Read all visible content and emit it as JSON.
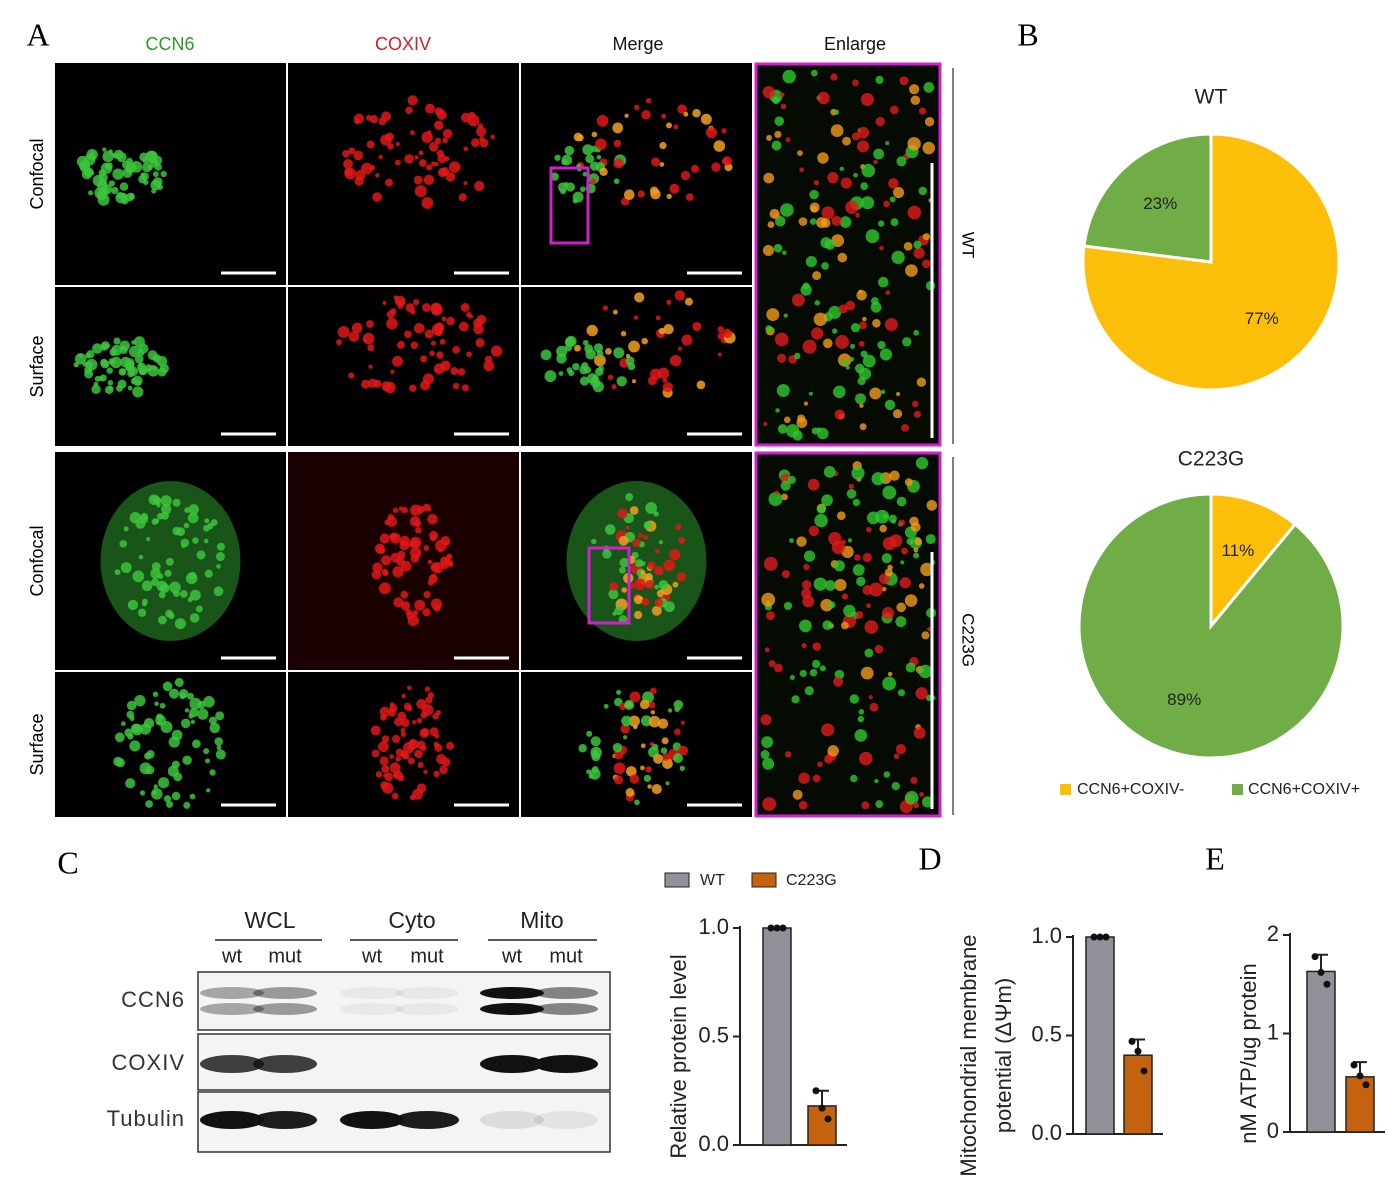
{
  "panel_labels": [
    "A",
    "B",
    "C",
    "D",
    "E"
  ],
  "images": {
    "columns": [
      "CCN6",
      "COXIV",
      "Merge",
      "Enlarge"
    ],
    "rows": [
      "Confocal",
      "Surface",
      "Confocal",
      "Surface"
    ],
    "groups": [
      "WT",
      "C223G"
    ]
  },
  "blot": {
    "groups": [
      "WCL",
      "Cyto",
      "Mito"
    ],
    "lanes": [
      "wt",
      "mut",
      "wt",
      "mut",
      "wt",
      "mut"
    ],
    "rows": [
      "CCN6",
      "COXIV",
      "Tubulin"
    ]
  },
  "chart_data": [
    {
      "type": "pie",
      "title": "WT",
      "categories": [
        "CCN6+COXIV-",
        "CCN6+COXIV+"
      ],
      "values": [
        77,
        23
      ],
      "value_labels": [
        "77%",
        "23%"
      ],
      "colors": [
        "#fbbf0a",
        "#70ad47"
      ],
      "legend": "bottom"
    },
    {
      "type": "pie",
      "title": "C223G",
      "categories": [
        "CCN6+COXIV-",
        "CCN6+COXIV+"
      ],
      "values": [
        11,
        89
      ],
      "value_labels": [
        "11%",
        "89%"
      ],
      "colors": [
        "#fbbf0a",
        "#70ad47"
      ]
    },
    {
      "type": "bar",
      "ylabel": [
        "Relative protein level"
      ],
      "ylim": [
        0,
        1.0
      ],
      "yticks": [
        {
          "value": 0,
          "label": "0.0"
        },
        {
          "value": 0.5,
          "label": "0.5"
        },
        {
          "value": 1,
          "label": "1.0"
        }
      ],
      "legend": "top",
      "series": [
        {
          "name": "WT",
          "color": "#919199",
          "values": [
            1.0
          ],
          "errors": [
            0
          ],
          "points": [
            1.0,
            1.0,
            1.0
          ]
        },
        {
          "name": "C223G",
          "color": "#c5620f",
          "values": [
            0.18
          ],
          "errors": [
            0.07
          ],
          "points": [
            0.25,
            0.17,
            0.12
          ]
        }
      ]
    },
    {
      "type": "bar",
      "ylabel": [
        "Mitochondrial membrane",
        "potential (ΔΨm)"
      ],
      "ylim": [
        0,
        1.0
      ],
      "yticks": [
        {
          "value": 0,
          "label": "0.0"
        },
        {
          "value": 0.5,
          "label": "0.5"
        },
        {
          "value": 1,
          "label": "1.0"
        }
      ],
      "series": [
        {
          "name": "WT",
          "color": "#919199",
          "values": [
            1.0
          ],
          "errors": [
            0
          ],
          "points": [
            1.0,
            1.0,
            1.0
          ]
        },
        {
          "name": "C223G",
          "color": "#c5620f",
          "values": [
            0.4
          ],
          "errors": [
            0.08
          ],
          "points": [
            0.47,
            0.42,
            0.32
          ]
        }
      ]
    },
    {
      "type": "bar",
      "ylabel": [
        "nM ATP/ug protein"
      ],
      "ylim": [
        0,
        2
      ],
      "yticks": [
        0,
        1,
        2
      ],
      "series": [
        {
          "name": "WT",
          "color": "#919199",
          "values": [
            1.63
          ],
          "errors": [
            0.17
          ],
          "points": [
            1.78,
            1.62,
            1.5
          ]
        },
        {
          "name": "C223G",
          "color": "#c5620f",
          "values": [
            0.56
          ],
          "errors": [
            0.15
          ],
          "points": [
            0.68,
            0.57,
            0.48
          ]
        }
      ]
    }
  ]
}
